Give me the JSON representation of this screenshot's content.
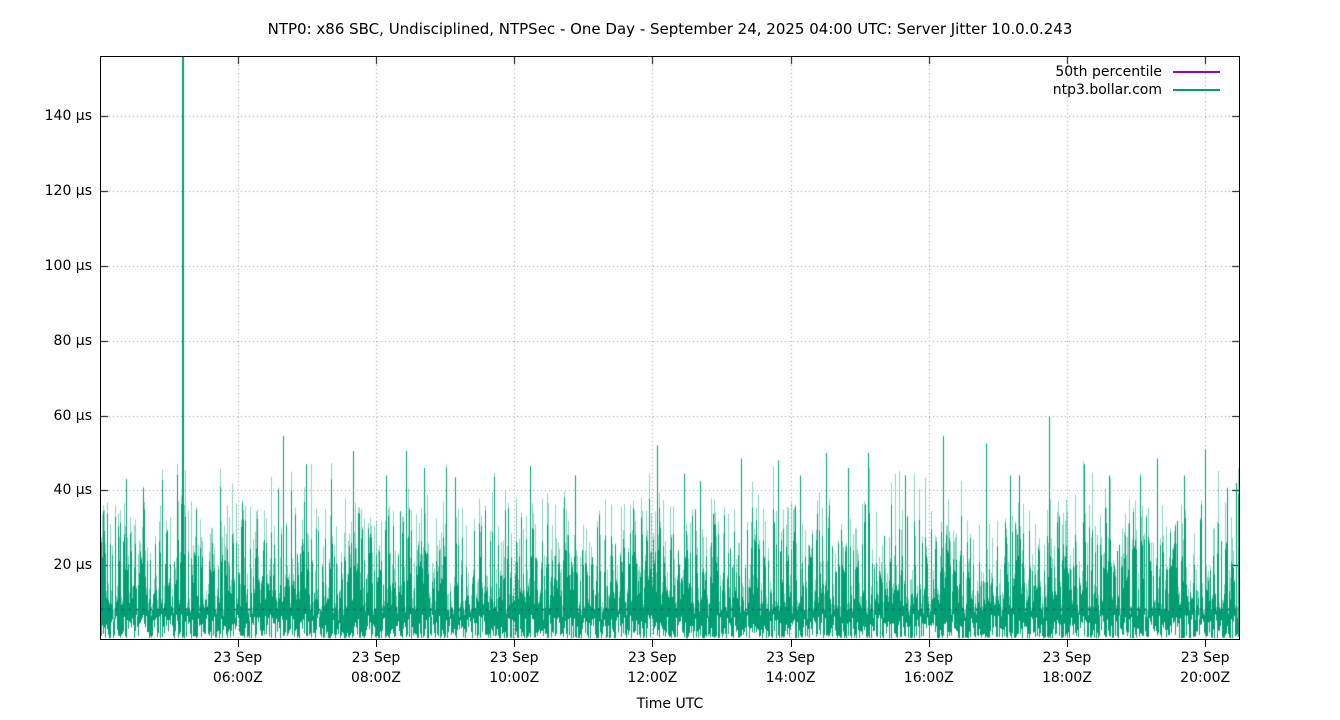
{
  "chart_data": {
    "type": "line",
    "title": "NTP0: x86 SBC, Undisciplined, NTPSec - One Day - September 24, 2025 04:00 UTC: Server Jitter 10.0.0.243",
    "xlabel": "Time UTC",
    "ylabel": "",
    "x_axis": {
      "reference_date": "2025-09-23",
      "start_hour": 4.02,
      "end_hour": 20.49,
      "tick_hours": [
        6,
        8,
        10,
        12,
        14,
        16,
        18,
        20
      ],
      "tick_labels": [
        {
          "line1": "23 Sep",
          "line2": "06:00Z"
        },
        {
          "line1": "23 Sep",
          "line2": "08:00Z"
        },
        {
          "line1": "23 Sep",
          "line2": "10:00Z"
        },
        {
          "line1": "23 Sep",
          "line2": "12:00Z"
        },
        {
          "line1": "23 Sep",
          "line2": "14:00Z"
        },
        {
          "line1": "23 Sep",
          "line2": "16:00Z"
        },
        {
          "line1": "23 Sep",
          "line2": "18:00Z"
        },
        {
          "line1": "23 Sep",
          "line2": "20:00Z"
        }
      ]
    },
    "y_axis": {
      "min": 0.3,
      "max": 155.8,
      "unit": "µs",
      "tick_values": [
        20,
        40,
        60,
        80,
        100,
        120,
        140
      ],
      "tick_suffix": " µs"
    },
    "grid": {
      "show": true,
      "color": "#9a9a9a",
      "style": "dotted"
    },
    "legend": {
      "position": "top-right",
      "entries": [
        {
          "label": "50th percentile",
          "color": "#9400D3"
        },
        {
          "label": "ntp3.bollar.com",
          "color": "#009E73"
        }
      ]
    },
    "series": [
      {
        "name": "50th percentile",
        "render": "dashed-hline",
        "value_us": 8.2,
        "color": "#9400D3",
        "apparent_plot_color": "#44449a"
      },
      {
        "name": "ntp3.bollar.com",
        "render": "impulse-noise",
        "color": "#009E73",
        "color_light": "rgba(0,158,115,0.45)",
        "noise": {
          "seed": 20250924,
          "low_min_us": 0.5,
          "low_var_us": 6.5,
          "top_base_us": 8,
          "top_range_us": 30,
          "top_exp": 1.35,
          "burst_prob": 0.04,
          "burst_min_us": 38,
          "burst_max_us": 48
        },
        "median_us": 8.2,
        "peaks_hour_us": [
          [
            4.38,
            43
          ],
          [
            5.19,
            155.8
          ],
          [
            6.66,
            54.5
          ],
          [
            6.98,
            47
          ],
          [
            7.66,
            50.5
          ],
          [
            8.14,
            44
          ],
          [
            8.43,
            50.5
          ],
          [
            8.7,
            46
          ],
          [
            9.15,
            43.5
          ],
          [
            10.23,
            46.5
          ],
          [
            10.88,
            44
          ],
          [
            12.06,
            52
          ],
          [
            12.46,
            44.5
          ],
          [
            12.69,
            42.5
          ],
          [
            13.28,
            48.5
          ],
          [
            13.82,
            48
          ],
          [
            14.14,
            44
          ],
          [
            14.51,
            50
          ],
          [
            14.83,
            46
          ],
          [
            15.12,
            50
          ],
          [
            15.65,
            44
          ],
          [
            16.2,
            54.5
          ],
          [
            16.83,
            52.5
          ],
          [
            17.17,
            44
          ],
          [
            17.74,
            59.8
          ],
          [
            18.25,
            47
          ],
          [
            18.61,
            44
          ],
          [
            19.31,
            48.5
          ],
          [
            19.7,
            44
          ],
          [
            20.0,
            51
          ],
          [
            20.45,
            42
          ]
        ],
        "clipped_peak": {
          "hour": 5.19,
          "value_us": 155.8,
          "clipped_at_top": true
        }
      }
    ]
  }
}
